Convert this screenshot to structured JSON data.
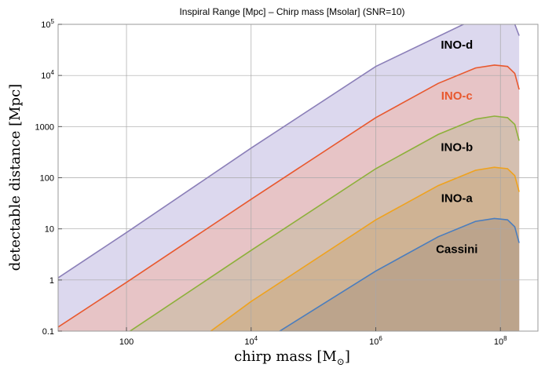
{
  "chart_data": {
    "type": "area",
    "title": "Inspiral Range [Mpc] – Chirp mass [Msolar] (SNR=10)",
    "xlabel": "chirp mass [M",
    "xlabel_sub": "⊙",
    "xlabel_close": "]",
    "ylabel": "detectable distance [Mpc]",
    "x_scale": "log",
    "y_scale": "log",
    "xlim": [
      8,
      400000000
    ],
    "ylim": [
      0.1,
      100000
    ],
    "grid": true,
    "x_ticks": [
      {
        "value": 100,
        "base": "100",
        "exp": ""
      },
      {
        "value": 10000,
        "base": "10",
        "exp": "4"
      },
      {
        "value": 1000000,
        "base": "10",
        "exp": "6"
      },
      {
        "value": 100000000,
        "base": "10",
        "exp": "8"
      }
    ],
    "y_ticks": [
      {
        "value": 0.1,
        "base": "0.1",
        "exp": ""
      },
      {
        "value": 1,
        "base": "1",
        "exp": ""
      },
      {
        "value": 10,
        "base": "10",
        "exp": ""
      },
      {
        "value": 100,
        "base": "100",
        "exp": ""
      },
      {
        "value": 1000,
        "base": "1000",
        "exp": ""
      },
      {
        "value": 10000,
        "base": "10",
        "exp": "4"
      },
      {
        "value": 100000,
        "base": "10",
        "exp": "5"
      }
    ],
    "series": [
      {
        "name": "INO-d",
        "color": "#8B7FB8",
        "fill": "#dcd8ee",
        "label_color": "#000000",
        "label_pos": [
          20000000,
          40000
        ],
        "x": [
          8,
          100,
          10000,
          1000000,
          40000000,
          80000000,
          150000000,
          200000000
        ],
        "y": [
          1.1,
          8.5,
          380,
          15000,
          130000,
          160000,
          150000,
          60000
        ]
      },
      {
        "name": "INO-c",
        "color": "#E8582E",
        "fill": "#e7c4c6",
        "label_color": "#E8582E",
        "label_pos": [
          20000000,
          4000
        ],
        "x": [
          8,
          100,
          10000,
          1000000,
          10000000,
          40000000,
          80000000,
          130000000,
          170000000,
          200000000
        ],
        "y": [
          0.12,
          0.9,
          38,
          1500,
          7000,
          14000,
          16000,
          15000,
          11000,
          5300
        ]
      },
      {
        "name": "INO-b",
        "color": "#8DB03A",
        "fill": "#d4bfb0",
        "label_color": "#000000",
        "label_pos": [
          20000000,
          400
        ],
        "x": [
          100,
          10000,
          1000000,
          10000000,
          40000000,
          80000000,
          130000000,
          170000000,
          200000000
        ],
        "y": [
          0.09,
          3.8,
          150,
          700,
          1400,
          1600,
          1500,
          1100,
          530
        ]
      },
      {
        "name": "INO-a",
        "color": "#EFA21E",
        "fill": "#cfb394",
        "label_color": "#000000",
        "label_pos": [
          20000000,
          40
        ],
        "x": [
          2000,
          10000,
          1000000,
          10000000,
          40000000,
          80000000,
          130000000,
          170000000,
          200000000
        ],
        "y": [
          0.09,
          0.38,
          15,
          70,
          140,
          160,
          150,
          110,
          53
        ]
      },
      {
        "name": "Cassini",
        "color": "#4A7DBE",
        "fill": "#bca48c",
        "label_color": "#000000",
        "label_pos": [
          20000000,
          4
        ],
        "x": [
          25000,
          1000000,
          10000000,
          40000000,
          80000000,
          130000000,
          170000000,
          200000000
        ],
        "y": [
          0.09,
          1.5,
          7,
          14,
          16,
          15,
          11,
          5.3
        ]
      }
    ]
  }
}
